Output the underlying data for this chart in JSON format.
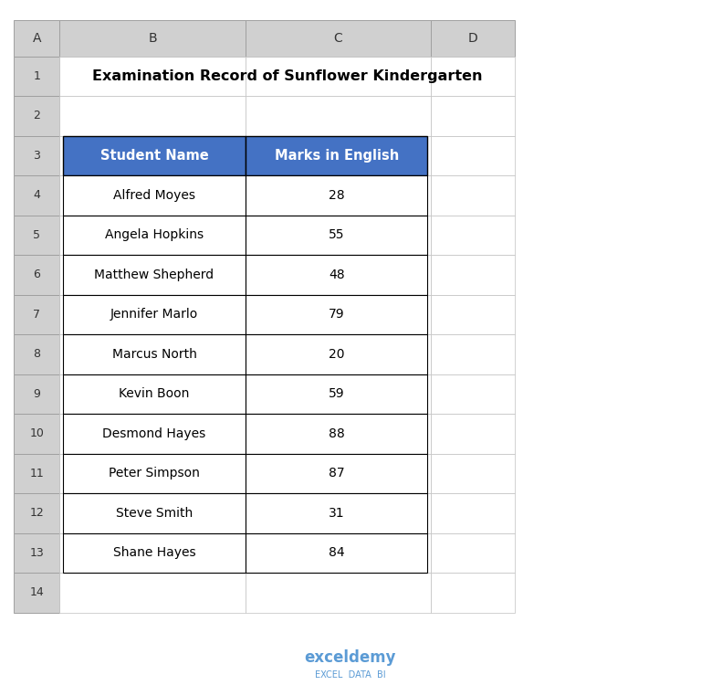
{
  "title": "Examination Record of Sunflower Kindergarten",
  "col_headers": [
    "Student Name",
    "Marks in English"
  ],
  "rows": [
    [
      "Alfred Moyes",
      "28"
    ],
    [
      "Angela Hopkins",
      "55"
    ],
    [
      "Matthew Shepherd",
      "48"
    ],
    [
      "Jennifer Marlo",
      "79"
    ],
    [
      "Marcus North",
      "20"
    ],
    [
      "Kevin Boon",
      "59"
    ],
    [
      "Desmond Hayes",
      "88"
    ],
    [
      "Peter Simpson",
      "87"
    ],
    [
      "Steve Smith",
      "31"
    ],
    [
      "Shane Hayes",
      "84"
    ]
  ],
  "header_bg_color": "#4472C4",
  "header_text_color": "#FFFFFF",
  "cell_bg_color": "#FFFFFF",
  "cell_text_color": "#000000",
  "title_color": "#000000",
  "excel_bg_color": "#FFFFFF",
  "col_header_color": "#D0D0D0",
  "col_border_color": "#A0A0A0",
  "row_border_color": "#C0C0C0",
  "col_labels": [
    "A",
    "B",
    "C",
    "D"
  ],
  "row_labels": [
    "1",
    "2",
    "3",
    "4",
    "5",
    "6",
    "7",
    "8",
    "9",
    "10",
    "11",
    "12",
    "13",
    "14"
  ],
  "watermark_text": "exceldemy",
  "watermark_sub": "EXCEL  DATA  BI",
  "watermark_color": "#5B9BD5",
  "figsize": [
    7.68,
    7.5
  ],
  "dpi": 100
}
